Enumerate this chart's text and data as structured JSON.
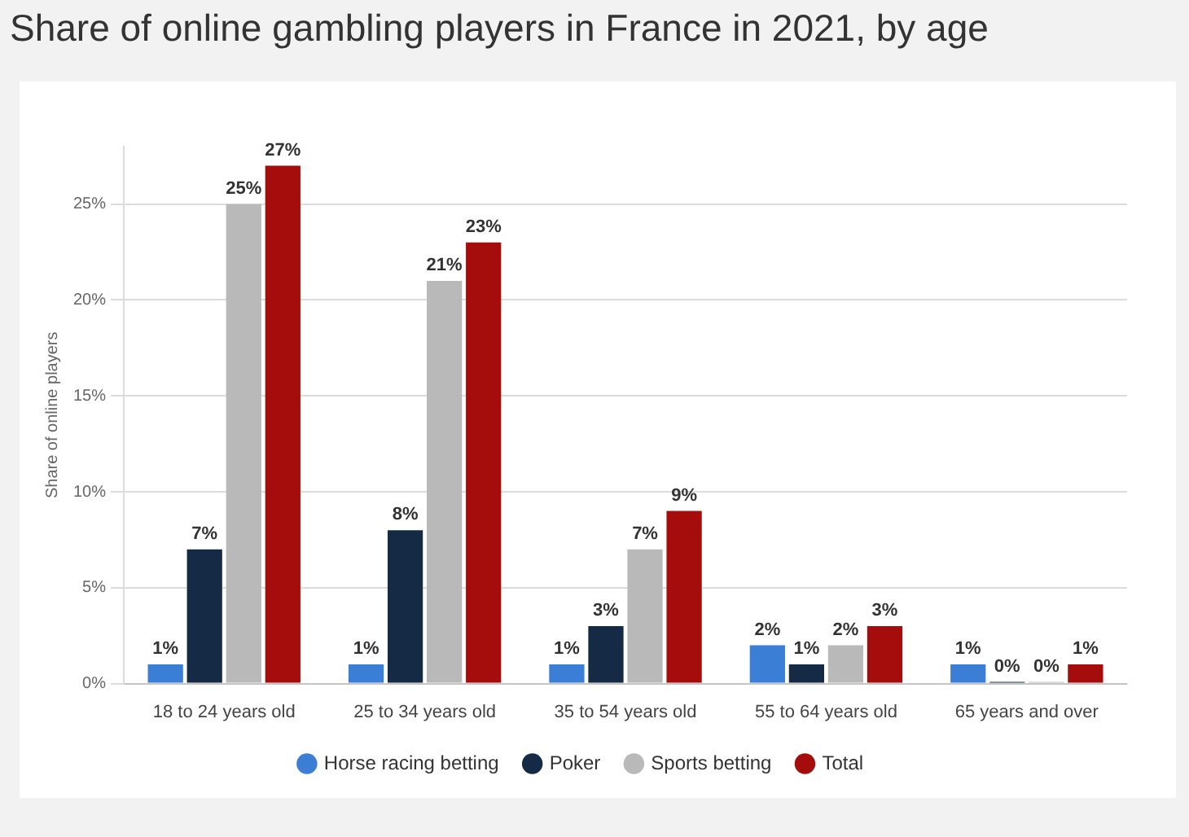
{
  "chart_data": {
    "type": "bar",
    "title": "Share of online gambling players in France in 2021, by age",
    "ylabel": "Share of online players",
    "categories": [
      "18 to 24 years old",
      "25 to 34 years old",
      "35 to 54 years old",
      "55 to 64 years old",
      "65 years and over"
    ],
    "series": [
      {
        "name": "Horse racing betting",
        "color": "#3a7fd5",
        "values": [
          1,
          1,
          1,
          2,
          1
        ],
        "value_labels": [
          "1%",
          "1%",
          "1%",
          "2%",
          "1%"
        ]
      },
      {
        "name": "Poker",
        "color": "#152a45",
        "values": [
          7,
          8,
          3,
          1,
          0
        ],
        "value_labels": [
          "7%",
          "8%",
          "3%",
          "1%",
          "0%"
        ]
      },
      {
        "name": "Sports betting",
        "color": "#b9b9b9",
        "values": [
          25,
          21,
          7,
          2,
          0
        ],
        "value_labels": [
          "25%",
          "21%",
          "7%",
          "2%",
          "0%"
        ]
      },
      {
        "name": "Total",
        "color": "#a50d0d",
        "values": [
          27,
          23,
          9,
          3,
          1
        ],
        "value_labels": [
          "27%",
          "23%",
          "9%",
          "3%",
          "1%"
        ]
      }
    ],
    "ylim": [
      0,
      28
    ],
    "yticks": [
      {
        "value": 0,
        "label": "0%"
      },
      {
        "value": 5,
        "label": "5%"
      },
      {
        "value": 10,
        "label": "10%"
      },
      {
        "value": 15,
        "label": "15%"
      },
      {
        "value": 20,
        "label": "20%"
      },
      {
        "value": 25,
        "label": "25%"
      }
    ],
    "grid": "y",
    "legend": "bottom"
  }
}
